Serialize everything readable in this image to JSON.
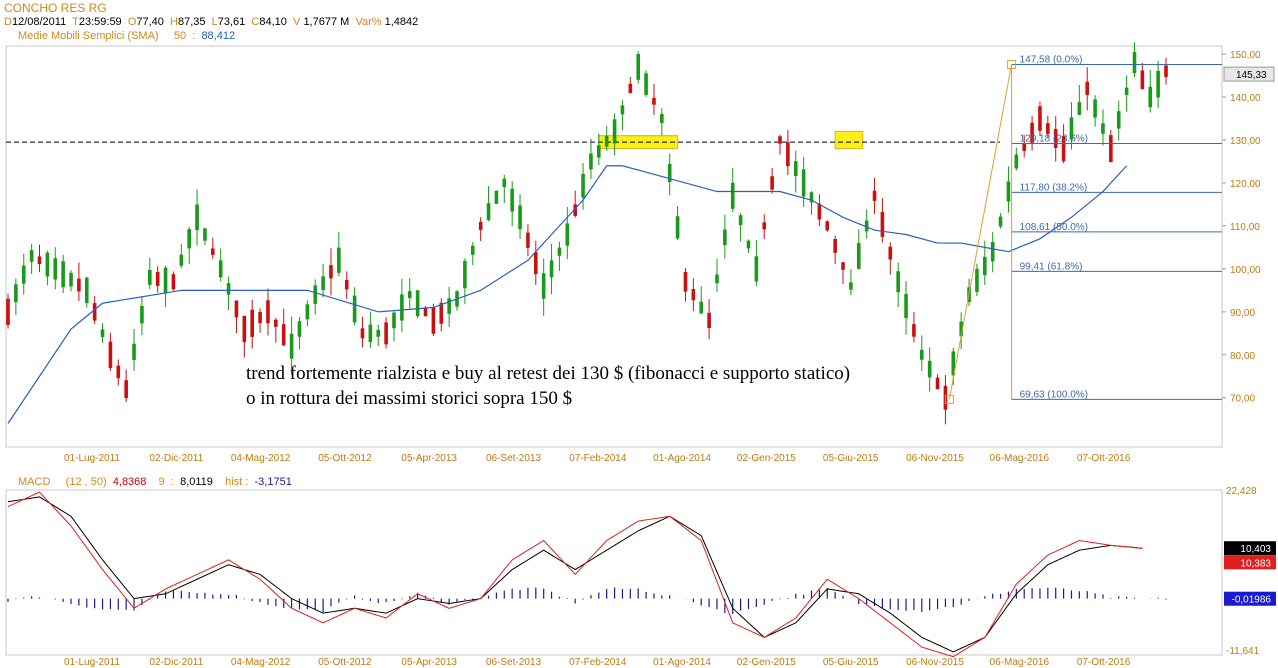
{
  "header": {
    "title": "CONCHO RES RG",
    "date_key": "D",
    "date": "12/08/2011",
    "time_key": "T",
    "time": "23:59:59",
    "open_key": "O",
    "open": "77,40",
    "high_key": "H",
    "high": "87,35",
    "low_key": "L",
    "low": "73,61",
    "close_key": "C",
    "close": "84,10",
    "vol_key": "V",
    "volume": "1,7677 M",
    "var_key": "Var%",
    "var": "1,4842",
    "sma_label": "Medie Mobili Semplici (SMA)",
    "sma_period": "50",
    "sma_sep": ":",
    "sma_value": "88,412"
  },
  "macd_header": {
    "label": "MACD",
    "params": "(12 , 50)",
    "macd_value": "4,8368",
    "signal_period": "9",
    "signal_sep": ":",
    "signal_value": "8,0119",
    "hist_label": "hist :",
    "hist_value": "-3,1751"
  },
  "annotation": {
    "line1": "trend fortemente rialzista e buy al retest dei 130 $ (fibonacci e supporto statico)",
    "line2": "o in rottura dei massimi storici sopra 150 $"
  },
  "colors": {
    "candle_up": "#1a9a1a",
    "candle_down": "#cc1010",
    "sma": "#2a5fc0",
    "fib": "#3a6ab0",
    "fib_trend": "#e0a030",
    "highlight": "#ffee00",
    "macd_line": "#e02020",
    "signal_line": "#000000",
    "hist": "#1a1a9a",
    "axis_text": "#c07a10"
  },
  "chart_data": [
    {
      "type": "candlestick",
      "x_tick_labels": [
        "01-Lug-2011",
        "02-Dic-2011",
        "04-Mag-2012",
        "05-Ott-2012",
        "05-Apr-2013",
        "06-Set-2013",
        "07-Feb-2014",
        "01-Ago-2014",
        "02-Gen-2015",
        "05-Giu-2015",
        "06-Nov-2015",
        "06-Mag-2016",
        "07-Ott-2016"
      ],
      "y_ticks": [
        70,
        80,
        90,
        100,
        110,
        120,
        130,
        140,
        150
      ],
      "y_tick_labels": [
        "70,00",
        "80,00",
        "90,00",
        "100,00",
        "110,00",
        "120,00",
        "130,00",
        "140,00",
        "150,00"
      ],
      "ylim": [
        60,
        152
      ],
      "last_price_label": "145,33",
      "last_price": 145.33,
      "price_path": [
        [
          0,
          90
        ],
        [
          3,
          103
        ],
        [
          6,
          100
        ],
        [
          10,
          95
        ],
        [
          13,
          80
        ],
        [
          15,
          72
        ],
        [
          18,
          98
        ],
        [
          21,
          97
        ],
        [
          24,
          112
        ],
        [
          27,
          100
        ],
        [
          30,
          86
        ],
        [
          33,
          90
        ],
        [
          36,
          82
        ],
        [
          39,
          94
        ],
        [
          42,
          102
        ],
        [
          45,
          85
        ],
        [
          48,
          85
        ],
        [
          51,
          94
        ],
        [
          54,
          88
        ],
        [
          57,
          93
        ],
        [
          60,
          110
        ],
        [
          63,
          120
        ],
        [
          65,
          112
        ],
        [
          68,
          96
        ],
        [
          71,
          108
        ],
        [
          74,
          125
        ],
        [
          77,
          132
        ],
        [
          80,
          147
        ],
        [
          83,
          135
        ],
        [
          86,
          97
        ],
        [
          89,
          88
        ],
        [
          92,
          117
        ],
        [
          95,
          100
        ],
        [
          98,
          130
        ],
        [
          101,
          120
        ],
        [
          104,
          110
        ],
        [
          107,
          96
        ],
        [
          110,
          117
        ],
        [
          113,
          97
        ],
        [
          116,
          80
        ],
        [
          119,
          70
        ],
        [
          122,
          94
        ],
        [
          125,
          104
        ],
        [
          128,
          125
        ],
        [
          131,
          135
        ],
        [
          134,
          128
        ],
        [
          137,
          142
        ],
        [
          140,
          128
        ],
        [
          143,
          148
        ],
        [
          145,
          140
        ],
        [
          147,
          146
        ]
      ],
      "sma_path": [
        [
          0,
          64
        ],
        [
          8,
          86
        ],
        [
          12,
          92
        ],
        [
          22,
          95
        ],
        [
          30,
          95
        ],
        [
          38,
          95
        ],
        [
          47,
          90
        ],
        [
          54,
          91
        ],
        [
          60,
          95
        ],
        [
          66,
          102
        ],
        [
          70,
          110
        ],
        [
          73,
          116
        ],
        [
          76,
          124
        ],
        [
          78,
          124
        ],
        [
          82,
          122
        ],
        [
          86,
          120
        ],
        [
          90,
          118
        ],
        [
          94,
          118
        ],
        [
          98,
          118
        ],
        [
          102,
          116
        ],
        [
          106,
          112
        ],
        [
          110,
          109
        ],
        [
          114,
          108
        ],
        [
          118,
          106
        ],
        [
          121,
          106
        ],
        [
          124,
          105
        ],
        [
          127,
          104
        ],
        [
          131,
          107
        ],
        [
          135,
          112
        ],
        [
          139,
          118
        ],
        [
          142,
          124
        ]
      ],
      "dashed_support": 129.5,
      "highlights": [
        {
          "x_from": 75,
          "x_to": 85,
          "y_from": 128,
          "y_to": 131
        },
        {
          "x_from": 105,
          "x_to": 108.5,
          "y_from": 128,
          "y_to": 132
        }
      ],
      "fibonacci": {
        "levels": [
          {
            "value": 147.58,
            "label": "147,58 (0.0%)"
          },
          {
            "value": 129.18,
            "label": "129,18 (23.6%)"
          },
          {
            "value": 117.8,
            "label": "117,80 (38.2%)"
          },
          {
            "value": 108.61,
            "label": "108,61 (50.0%)"
          },
          {
            "value": 99.41,
            "label": "99,41 (61.8%)"
          },
          {
            "value": 69.63,
            "label": "69,63 (100.0%)"
          }
        ],
        "anchor_low": {
          "x": 119.5,
          "y": 69.63
        },
        "anchor_high": {
          "x": 127.4,
          "y": 147.58
        }
      }
    },
    {
      "type": "line",
      "title": "MACD",
      "y_tick_labels": [
        "22,428",
        "-11,641"
      ],
      "ylim": [
        -11.641,
        22.428
      ],
      "value_labels": {
        "signal": "10,403",
        "macd": "10,383",
        "hist": "-0,01986"
      },
      "series": [
        {
          "name": "MACD",
          "values": [
            [
              0,
              19
            ],
            [
              4,
              22
            ],
            [
              8,
              15
            ],
            [
              12,
              6
            ],
            [
              16,
              -2
            ],
            [
              20,
              2
            ],
            [
              24,
              5
            ],
            [
              28,
              8
            ],
            [
              32,
              4
            ],
            [
              36,
              -2
            ],
            [
              40,
              -5
            ],
            [
              44,
              -2
            ],
            [
              48,
              -4
            ],
            [
              52,
              1
            ],
            [
              56,
              -2
            ],
            [
              60,
              0
            ],
            [
              64,
              8
            ],
            [
              68,
              12
            ],
            [
              72,
              5
            ],
            [
              76,
              12
            ],
            [
              80,
              16
            ],
            [
              84,
              17
            ],
            [
              88,
              12
            ],
            [
              92,
              -5
            ],
            [
              96,
              -8
            ],
            [
              100,
              -4
            ],
            [
              104,
              4
            ],
            [
              108,
              0
            ],
            [
              112,
              -5
            ],
            [
              116,
              -10
            ],
            [
              120,
              -12
            ],
            [
              124,
              -8
            ],
            [
              128,
              3
            ],
            [
              132,
              9
            ],
            [
              136,
              12
            ],
            [
              140,
              11
            ],
            [
              144,
              10.38
            ]
          ]
        },
        {
          "name": "Signal",
          "values": [
            [
              0,
              20
            ],
            [
              4,
              21
            ],
            [
              8,
              17
            ],
            [
              12,
              8
            ],
            [
              16,
              0
            ],
            [
              20,
              1
            ],
            [
              24,
              4
            ],
            [
              28,
              7
            ],
            [
              32,
              5
            ],
            [
              36,
              0
            ],
            [
              40,
              -3
            ],
            [
              44,
              -2
            ],
            [
              48,
              -3
            ],
            [
              52,
              0
            ],
            [
              56,
              -1
            ],
            [
              60,
              0
            ],
            [
              64,
              6
            ],
            [
              68,
              10
            ],
            [
              72,
              6
            ],
            [
              76,
              10
            ],
            [
              80,
              14
            ],
            [
              84,
              17
            ],
            [
              88,
              13
            ],
            [
              92,
              -2
            ],
            [
              96,
              -8
            ],
            [
              100,
              -5
            ],
            [
              104,
              2
            ],
            [
              108,
              1
            ],
            [
              112,
              -3
            ],
            [
              116,
              -8
            ],
            [
              120,
              -11
            ],
            [
              124,
              -8
            ],
            [
              128,
              1
            ],
            [
              132,
              7
            ],
            [
              136,
              10
            ],
            [
              140,
              11
            ],
            [
              144,
              10.4
            ]
          ]
        }
      ],
      "hist": [
        [
          0,
          -0.4
        ],
        [
          4,
          0.5
        ],
        [
          8,
          -1
        ],
        [
          12,
          -2.2
        ],
        [
          16,
          -2.4
        ],
        [
          20,
          1.5
        ],
        [
          24,
          1.2
        ],
        [
          28,
          1
        ],
        [
          32,
          -0.8
        ],
        [
          36,
          -2
        ],
        [
          40,
          -2.5
        ],
        [
          44,
          0.4
        ],
        [
          48,
          -1
        ],
        [
          52,
          1
        ],
        [
          56,
          -1
        ],
        [
          60,
          0.2
        ],
        [
          64,
          2
        ],
        [
          68,
          2
        ],
        [
          72,
          -0.8
        ],
        [
          76,
          2
        ],
        [
          80,
          2
        ],
        [
          84,
          0.5
        ],
        [
          88,
          -1.2
        ],
        [
          92,
          -3.2
        ],
        [
          96,
          -1
        ],
        [
          100,
          0.8
        ],
        [
          104,
          2
        ],
        [
          108,
          -1
        ],
        [
          112,
          -2
        ],
        [
          116,
          -2.5
        ],
        [
          120,
          -1.6
        ],
        [
          124,
          0.4
        ],
        [
          128,
          2
        ],
        [
          132,
          2.2
        ],
        [
          136,
          1.6
        ],
        [
          140,
          0.3
        ],
        [
          144,
          -0.02
        ]
      ]
    }
  ]
}
